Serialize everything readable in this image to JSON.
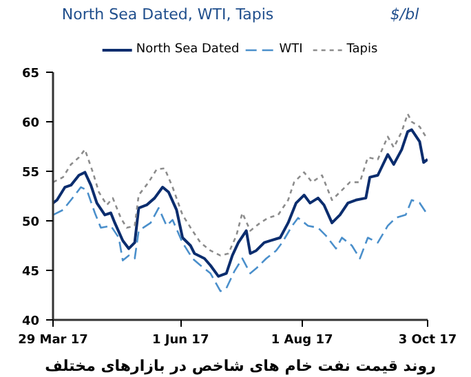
{
  "chart_data": {
    "type": "line",
    "title": "North Sea Dated, WTI, Tapis",
    "ylabel": "$/bl",
    "annotations": [
      "روند قیمت نفت خام های شاخص در بازارهای مختلف"
    ],
    "xlim": [
      "2017-03-29",
      "2017-10-03"
    ],
    "xticks": [
      {
        "value": "2017-03-29",
        "label": "29 Mar 17"
      },
      {
        "value": "2017-06-01",
        "label": "1 Jun 17"
      },
      {
        "value": "2017-08-01",
        "label": "1 Aug 17"
      },
      {
        "value": "2017-10-03",
        "label": "3 Oct 17"
      }
    ],
    "ylim": [
      40,
      65
    ],
    "yticks": [
      40,
      45,
      50,
      55,
      60,
      65
    ],
    "grid": false,
    "legend": "top",
    "marker": "none",
    "series": [
      {
        "name": "North Sea Dated",
        "color": "#0b2d6e",
        "line_style": "solid",
        "x": [
          "2017-03-29",
          "2017-03-31",
          "2017-04-04",
          "2017-04-07",
          "2017-04-11",
          "2017-04-14",
          "2017-04-17",
          "2017-04-20",
          "2017-04-24",
          "2017-04-27",
          "2017-04-29",
          "2017-05-03",
          "2017-05-06",
          "2017-05-09",
          "2017-05-11",
          "2017-05-15",
          "2017-05-19",
          "2017-05-23",
          "2017-05-26",
          "2017-05-30",
          "2017-06-02",
          "2017-06-06",
          "2017-06-08",
          "2017-06-13",
          "2017-06-16",
          "2017-06-20",
          "2017-06-24",
          "2017-06-27",
          "2017-06-30",
          "2017-07-04",
          "2017-07-06",
          "2017-07-09",
          "2017-07-13",
          "2017-07-16",
          "2017-07-21",
          "2017-07-25",
          "2017-07-29",
          "2017-08-02",
          "2017-08-05",
          "2017-08-09",
          "2017-08-12",
          "2017-08-16",
          "2017-08-20",
          "2017-08-24",
          "2017-08-28",
          "2017-09-02",
          "2017-09-04",
          "2017-09-08",
          "2017-09-13",
          "2017-09-16",
          "2017-09-20",
          "2017-09-23",
          "2017-09-25",
          "2017-09-29",
          "2017-10-01",
          "2017-10-03"
        ],
        "values": [
          51.8,
          52.1,
          53.4,
          53.6,
          54.6,
          54.9,
          53.6,
          51.8,
          50.6,
          50.8,
          49.8,
          48,
          47.2,
          47.8,
          51.3,
          51.6,
          52.3,
          53.4,
          52.9,
          51.1,
          48.3,
          47.5,
          46.7,
          46.2,
          45.5,
          44.4,
          44.7,
          46.5,
          47.8,
          49,
          46.7,
          47,
          47.8,
          48,
          48.3,
          49.8,
          51.8,
          52.6,
          51.8,
          52.3,
          51.6,
          49.8,
          50.6,
          51.8,
          52.1,
          52.3,
          54.4,
          54.6,
          56.7,
          55.7,
          57.2,
          59,
          59.2,
          58,
          55.9,
          56.2
        ]
      },
      {
        "name": "WTI",
        "color": "#4a8fcb",
        "line_style": "dashed",
        "x": [
          "2017-03-29",
          "2017-04-03",
          "2017-04-07",
          "2017-04-12",
          "2017-04-15",
          "2017-04-19",
          "2017-04-22",
          "2017-04-27",
          "2017-05-01",
          "2017-05-03",
          "2017-05-06",
          "2017-05-09",
          "2017-05-11",
          "2017-05-17",
          "2017-05-21",
          "2017-05-25",
          "2017-05-28",
          "2017-06-02",
          "2017-06-07",
          "2017-06-11",
          "2017-06-16",
          "2017-06-21",
          "2017-06-24",
          "2017-06-28",
          "2017-07-02",
          "2017-07-06",
          "2017-07-09",
          "2017-07-14",
          "2017-07-19",
          "2017-07-22",
          "2017-07-27",
          "2017-07-30",
          "2017-08-04",
          "2017-08-09",
          "2017-08-13",
          "2017-08-18",
          "2017-08-21",
          "2017-08-26",
          "2017-08-30",
          "2017-09-03",
          "2017-09-08",
          "2017-09-13",
          "2017-09-17",
          "2017-09-22",
          "2017-09-25",
          "2017-09-29",
          "2017-10-03"
        ],
        "values": [
          50.6,
          51.1,
          52.1,
          53.4,
          53.1,
          50.8,
          49.3,
          49.5,
          48.3,
          46,
          46.5,
          46.2,
          49,
          49.8,
          51.3,
          49.5,
          50.1,
          47.8,
          46.2,
          45.5,
          44.7,
          42.9,
          43.2,
          44.9,
          46.2,
          44.7,
          45.2,
          46.2,
          47,
          47.8,
          49.5,
          50.3,
          49.5,
          49.3,
          48.5,
          47.2,
          48.3,
          47.5,
          46.2,
          48.3,
          47.8,
          49.5,
          50.3,
          50.6,
          52.1,
          51.8,
          50.6
        ]
      },
      {
        "name": "Tapis",
        "color": "#8c8c8c",
        "line_style": "dotted",
        "x": [
          "2017-03-29",
          "2017-04-03",
          "2017-04-07",
          "2017-04-11",
          "2017-04-14",
          "2017-04-18",
          "2017-04-21",
          "2017-04-25",
          "2017-04-28",
          "2017-05-02",
          "2017-05-05",
          "2017-05-09",
          "2017-05-11",
          "2017-05-16",
          "2017-05-20",
          "2017-05-24",
          "2017-05-28",
          "2017-06-02",
          "2017-06-07",
          "2017-06-11",
          "2017-06-16",
          "2017-06-21",
          "2017-06-25",
          "2017-06-29",
          "2017-07-02",
          "2017-07-06",
          "2017-07-11",
          "2017-07-15",
          "2017-07-20",
          "2017-07-25",
          "2017-07-28",
          "2017-08-02",
          "2017-08-06",
          "2017-08-11",
          "2017-08-16",
          "2017-08-20",
          "2017-08-25",
          "2017-08-30",
          "2017-09-03",
          "2017-09-08",
          "2017-09-13",
          "2017-09-16",
          "2017-09-20",
          "2017-09-23",
          "2017-09-25",
          "2017-09-29",
          "2017-10-03"
        ],
        "values": [
          53.9,
          54.4,
          55.7,
          56.4,
          57.2,
          54.9,
          52.9,
          51.6,
          52.3,
          50.3,
          49.3,
          49.5,
          52.6,
          53.9,
          55.2,
          55.3,
          53.4,
          50.6,
          49,
          47.8,
          47,
          46.5,
          46.7,
          48.5,
          50.8,
          49,
          49.8,
          50.3,
          50.6,
          52.1,
          53.9,
          54.9,
          53.9,
          54.6,
          52.1,
          52.9,
          53.9,
          53.9,
          56.4,
          56.2,
          58.5,
          57.4,
          59,
          60.8,
          60,
          59.5,
          58.2
        ]
      }
    ]
  }
}
